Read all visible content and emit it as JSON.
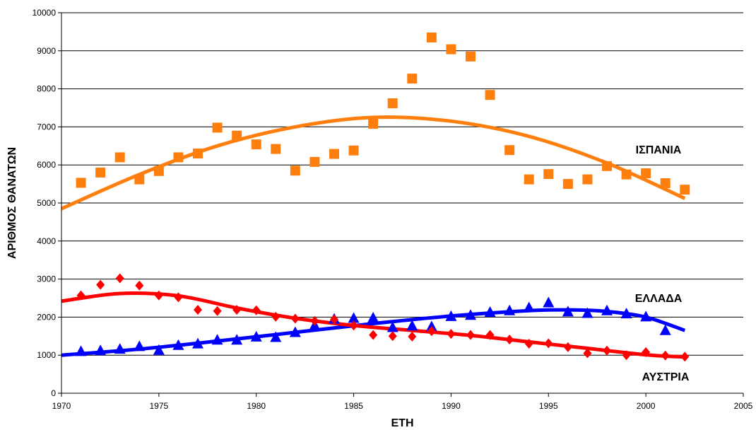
{
  "chart_data": {
    "type": "scatter",
    "title": "",
    "xlabel": "ΕΤΗ",
    "ylabel": "ΑΡΙΘΜΟΣ ΘΑΝΑΤΩΝ",
    "xlim": [
      1970,
      2005
    ],
    "ylim": [
      0,
      10000
    ],
    "x_ticks": [
      1970,
      1975,
      1980,
      1985,
      1990,
      1995,
      2000,
      2005
    ],
    "y_ticks": [
      0,
      1000,
      2000,
      3000,
      4000,
      5000,
      6000,
      7000,
      8000,
      9000,
      10000
    ],
    "grid": "horizontal",
    "series": [
      {
        "name": "ΙΣΠΑΝΙΑ",
        "color": "#FF7F0E",
        "marker": "square",
        "x": [
          1971,
          1972,
          1973,
          1974,
          1975,
          1976,
          1977,
          1978,
          1979,
          1980,
          1981,
          1982,
          1983,
          1984,
          1985,
          1986,
          1987,
          1988,
          1989,
          1990,
          1991,
          1992,
          1993,
          1994,
          1995,
          1996,
          1997,
          1998,
          1999,
          2000,
          2001,
          2002
        ],
        "y": [
          5530,
          5800,
          6200,
          5620,
          5840,
          6200,
          6300,
          6980,
          6770,
          6540,
          6420,
          5850,
          6080,
          6290,
          6380,
          7080,
          7620,
          8270,
          9350,
          9040,
          8850,
          7840,
          6390,
          5620,
          5760,
          5500,
          5620,
          5970,
          5750,
          5780,
          5520,
          5350
        ],
        "trend_x": [
          1970,
          1974,
          1978,
          1982,
          1986,
          1990,
          1994,
          1998,
          2002
        ],
        "trend_y": [
          4850,
          5750,
          6500,
          7000,
          7250,
          7150,
          6750,
          6050,
          5120
        ]
      },
      {
        "name": "ΕΛΛΑΔΑ",
        "color": "#0000FF",
        "marker": "triangle",
        "x": [
          1971,
          1972,
          1973,
          1974,
          1975,
          1976,
          1977,
          1978,
          1979,
          1980,
          1981,
          1982,
          1983,
          1984,
          1985,
          1986,
          1987,
          1988,
          1989,
          1990,
          1991,
          1992,
          1993,
          1994,
          1995,
          1996,
          1997,
          1998,
          1999,
          2000,
          2001
        ],
        "y": [
          1090,
          1110,
          1150,
          1220,
          1120,
          1250,
          1290,
          1390,
          1390,
          1470,
          1460,
          1590,
          1770,
          1940,
          1960,
          1970,
          1720,
          1760,
          1740,
          2010,
          2040,
          2120,
          2160,
          2240,
          2370,
          2130,
          2090,
          2160,
          2080,
          2000,
          1640
        ],
        "trend_x": [
          1970,
          1974,
          1978,
          1982,
          1986,
          1990,
          1994,
          1996,
          1998,
          2000,
          2002
        ],
        "trend_y": [
          1000,
          1160,
          1370,
          1600,
          1830,
          2030,
          2170,
          2190,
          2150,
          2000,
          1650
        ]
      },
      {
        "name": "ΑΥΣΤΡΙΑ",
        "color": "#FF0000",
        "marker": "diamond",
        "x": [
          1971,
          1972,
          1973,
          1974,
          1975,
          1976,
          1977,
          1978,
          1979,
          1980,
          1981,
          1982,
          1983,
          1984,
          1985,
          1986,
          1987,
          1988,
          1989,
          1990,
          1991,
          1992,
          1993,
          1994,
          1995,
          1996,
          1997,
          1998,
          1999,
          2000,
          2001,
          2002
        ],
        "y": [
          2570,
          2850,
          3020,
          2830,
          2570,
          2520,
          2190,
          2160,
          2190,
          2180,
          2010,
          1960,
          1900,
          1940,
          1780,
          1530,
          1500,
          1490,
          1630,
          1560,
          1530,
          1530,
          1410,
          1300,
          1310,
          1210,
          1050,
          1120,
          1000,
          1080,
          990,
          960
        ],
        "trend_x": [
          1970,
          1973,
          1976,
          1979,
          1982,
          1985,
          1988,
          1991,
          1994,
          1997,
          2000,
          2002
        ],
        "trend_y": [
          2420,
          2620,
          2560,
          2240,
          1970,
          1780,
          1650,
          1520,
          1350,
          1180,
          1010,
          950
        ]
      }
    ]
  }
}
